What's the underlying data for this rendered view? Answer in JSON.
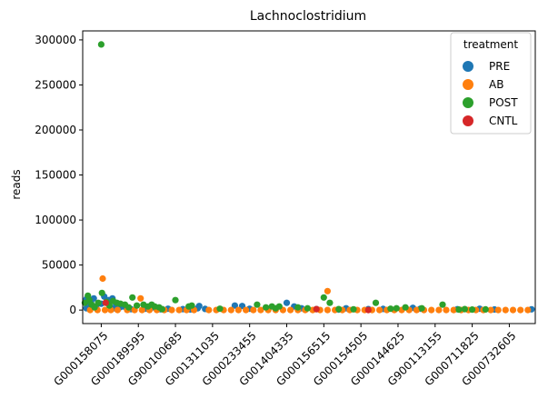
{
  "chart_data": {
    "type": "scatter",
    "title": "Lachnoclostridium",
    "xlabel": "",
    "ylabel": "reads",
    "ylim": [
      -15000,
      310000
    ],
    "yticks": [
      0,
      50000,
      100000,
      150000,
      200000,
      250000,
      300000
    ],
    "xlim": [
      -0.5,
      60.5
    ],
    "xticks": [
      {
        "pos": 2,
        "label": "G000158075"
      },
      {
        "pos": 7,
        "label": "G000189595"
      },
      {
        "pos": 12,
        "label": "G900100685"
      },
      {
        "pos": 17,
        "label": "G001311035"
      },
      {
        "pos": 22,
        "label": "G000233455"
      },
      {
        "pos": 27,
        "label": "G001404335"
      },
      {
        "pos": 32,
        "label": "G000156515"
      },
      {
        "pos": 37,
        "label": "G000154505"
      },
      {
        "pos": 42,
        "label": "G000144625"
      },
      {
        "pos": 47,
        "label": "G900113155"
      },
      {
        "pos": 52,
        "label": "G000711825"
      },
      {
        "pos": 57,
        "label": "G000732605"
      }
    ],
    "legend": {
      "title": "treatment",
      "position": "top-right",
      "entries": [
        "PRE",
        "AB",
        "POST",
        "CNTL"
      ]
    },
    "colors": {
      "PRE": "#1f77b4",
      "AB": "#ff7f0e",
      "POST": "#2ca02c",
      "CNTL": "#d62728"
    },
    "series": [
      {
        "name": "PRE",
        "points": [
          [
            0,
            12000
          ],
          [
            0,
            2000
          ],
          [
            0.3,
            5000
          ],
          [
            0.6,
            9000
          ],
          [
            1,
            13000
          ],
          [
            1.3,
            4000
          ],
          [
            2,
            7000
          ],
          [
            2.4,
            15000
          ],
          [
            3,
            11000
          ],
          [
            3.5,
            13000
          ],
          [
            3.8,
            2000
          ],
          [
            4,
            6000
          ],
          [
            4.5,
            3000
          ],
          [
            5,
            4000
          ],
          [
            6,
            1000
          ],
          [
            8,
            1500
          ],
          [
            9,
            3000
          ],
          [
            10,
            800
          ],
          [
            11,
            1500
          ],
          [
            13,
            1000
          ],
          [
            14,
            600
          ],
          [
            15,
            2000
          ],
          [
            15.2,
            4500
          ],
          [
            16,
            1200
          ],
          [
            20,
            5000
          ],
          [
            21,
            4500
          ],
          [
            22,
            1500
          ],
          [
            27,
            8000
          ],
          [
            28,
            4000
          ],
          [
            29,
            2000
          ],
          [
            31,
            1000
          ],
          [
            34,
            500
          ],
          [
            35,
            2000
          ],
          [
            38,
            1000
          ],
          [
            40,
            1200
          ],
          [
            44,
            2500
          ],
          [
            45,
            1500
          ],
          [
            50,
            900
          ],
          [
            53,
            1500
          ],
          [
            55,
            600
          ],
          [
            60,
            800
          ]
        ]
      },
      {
        "name": "AB",
        "points": [
          [
            0.5,
            0
          ],
          [
            1.5,
            0
          ],
          [
            2.2,
            35000
          ],
          [
            2.5,
            0
          ],
          [
            3.3,
            0
          ],
          [
            4.2,
            0
          ],
          [
            5.5,
            0
          ],
          [
            6.5,
            0
          ],
          [
            7.3,
            13000
          ],
          [
            7.5,
            0
          ],
          [
            8.5,
            0
          ],
          [
            9.5,
            0
          ],
          [
            10.5,
            0
          ],
          [
            11.5,
            0
          ],
          [
            12.5,
            0
          ],
          [
            13.5,
            0
          ],
          [
            14.5,
            0
          ],
          [
            16.5,
            0
          ],
          [
            17.5,
            0
          ],
          [
            18.5,
            0
          ],
          [
            19.5,
            0
          ],
          [
            20.5,
            0
          ],
          [
            21.5,
            0
          ],
          [
            22.5,
            0
          ],
          [
            23.5,
            0
          ],
          [
            24.5,
            0
          ],
          [
            25.5,
            0
          ],
          [
            26.5,
            0
          ],
          [
            27.5,
            0
          ],
          [
            28.5,
            0
          ],
          [
            29.5,
            0
          ],
          [
            30.5,
            0
          ],
          [
            31.5,
            0
          ],
          [
            32.5,
            21000
          ],
          [
            32.5,
            0
          ],
          [
            33.5,
            0
          ],
          [
            34.5,
            0
          ],
          [
            35.5,
            0
          ],
          [
            36.5,
            0
          ],
          [
            37.5,
            0
          ],
          [
            38.5,
            0
          ],
          [
            39.5,
            0
          ],
          [
            40.5,
            0
          ],
          [
            41.5,
            0
          ],
          [
            42.5,
            0
          ],
          [
            43.5,
            0
          ],
          [
            44.5,
            0
          ],
          [
            45.5,
            0
          ],
          [
            46.5,
            0
          ],
          [
            47.5,
            0
          ],
          [
            48.5,
            0
          ],
          [
            49.5,
            0
          ],
          [
            50.5,
            0
          ],
          [
            51.5,
            0
          ],
          [
            52.5,
            0
          ],
          [
            53.5,
            0
          ],
          [
            54.5,
            0
          ],
          [
            55.5,
            0
          ],
          [
            56.5,
            0
          ],
          [
            57.5,
            0
          ],
          [
            58.5,
            0
          ],
          [
            59.5,
            0
          ]
        ]
      },
      {
        "name": "POST",
        "points": [
          [
            -0.2,
            8000
          ],
          [
            0.2,
            16000
          ],
          [
            0.4,
            11000
          ],
          [
            0.7,
            6000
          ],
          [
            1.1,
            3000
          ],
          [
            1.6,
            8000
          ],
          [
            2,
            295000
          ],
          [
            2.1,
            19000
          ],
          [
            2.7,
            9000
          ],
          [
            3.1,
            5000
          ],
          [
            3.6,
            10000
          ],
          [
            4.1,
            8000
          ],
          [
            4.6,
            7000
          ],
          [
            5.2,
            6000
          ],
          [
            5.7,
            3000
          ],
          [
            6.2,
            14000
          ],
          [
            6.8,
            5000
          ],
          [
            7.7,
            6000
          ],
          [
            8.3,
            4000
          ],
          [
            8.8,
            6000
          ],
          [
            9.2,
            4000
          ],
          [
            9.8,
            3000
          ],
          [
            10.2,
            1000
          ],
          [
            12,
            11000
          ],
          [
            13.8,
            4000
          ],
          [
            14.2,
            5000
          ],
          [
            18,
            1500
          ],
          [
            23,
            6000
          ],
          [
            24.2,
            3000
          ],
          [
            25,
            4000
          ],
          [
            25.5,
            2000
          ],
          [
            26,
            4000
          ],
          [
            28.5,
            3000
          ],
          [
            29.8,
            2000
          ],
          [
            32,
            14000
          ],
          [
            32.8,
            8000
          ],
          [
            34,
            1000
          ],
          [
            36,
            800
          ],
          [
            39,
            8000
          ],
          [
            41,
            1500
          ],
          [
            41.8,
            2000
          ],
          [
            43,
            3000
          ],
          [
            45.2,
            2000
          ],
          [
            48,
            6000
          ],
          [
            50.2,
            500
          ],
          [
            51,
            1000
          ],
          [
            52,
            500
          ],
          [
            53.8,
            700
          ]
        ]
      },
      {
        "name": "CNTL",
        "points": [
          [
            2.6,
            8000
          ],
          [
            31,
            1000
          ],
          [
            38,
            0
          ]
        ]
      }
    ]
  }
}
